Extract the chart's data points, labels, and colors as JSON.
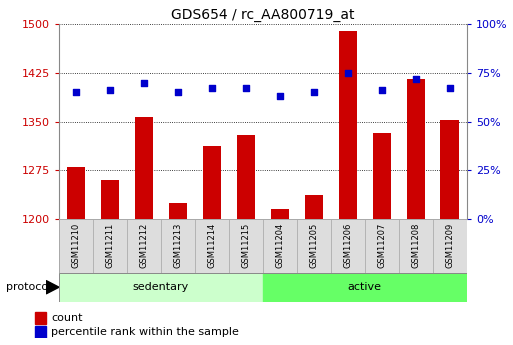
{
  "title": "GDS654 / rc_AA800719_at",
  "samples": [
    "GSM11210",
    "GSM11211",
    "GSM11212",
    "GSM11213",
    "GSM11214",
    "GSM11215",
    "GSM11204",
    "GSM11205",
    "GSM11206",
    "GSM11207",
    "GSM11208",
    "GSM11209"
  ],
  "groups": [
    "sedentary",
    "sedentary",
    "sedentary",
    "sedentary",
    "sedentary",
    "sedentary",
    "active",
    "active",
    "active",
    "active",
    "active",
    "active"
  ],
  "counts": [
    1280,
    1260,
    1357,
    1225,
    1312,
    1330,
    1215,
    1237,
    1490,
    1333,
    1415,
    1352
  ],
  "percentile_ranks": [
    65,
    66,
    70,
    65,
    67,
    67,
    63,
    65,
    75,
    66,
    72,
    67
  ],
  "ylim_left": [
    1200,
    1500
  ],
  "ylim_right": [
    0,
    100
  ],
  "yticks_left": [
    1200,
    1275,
    1350,
    1425,
    1500
  ],
  "yticks_right": [
    0,
    25,
    50,
    75,
    100
  ],
  "ytick_labels_right": [
    "0%",
    "25%",
    "50%",
    "75%",
    "100%"
  ],
  "bar_color": "#cc0000",
  "dot_color": "#0000cc",
  "sedentary_color": "#ccffcc",
  "active_color": "#66ff66",
  "label_box_color": "#dddddd",
  "label_box_edge_color": "#aaaaaa",
  "protocol_label": "protocol",
  "group_labels": [
    "sedentary",
    "active"
  ],
  "legend_count_label": "count",
  "legend_percentile_label": "percentile rank within the sample",
  "bar_width": 0.55,
  "tick_label_color_left": "#cc0000",
  "tick_label_color_right": "#0000cc",
  "spine_color": "#888888"
}
